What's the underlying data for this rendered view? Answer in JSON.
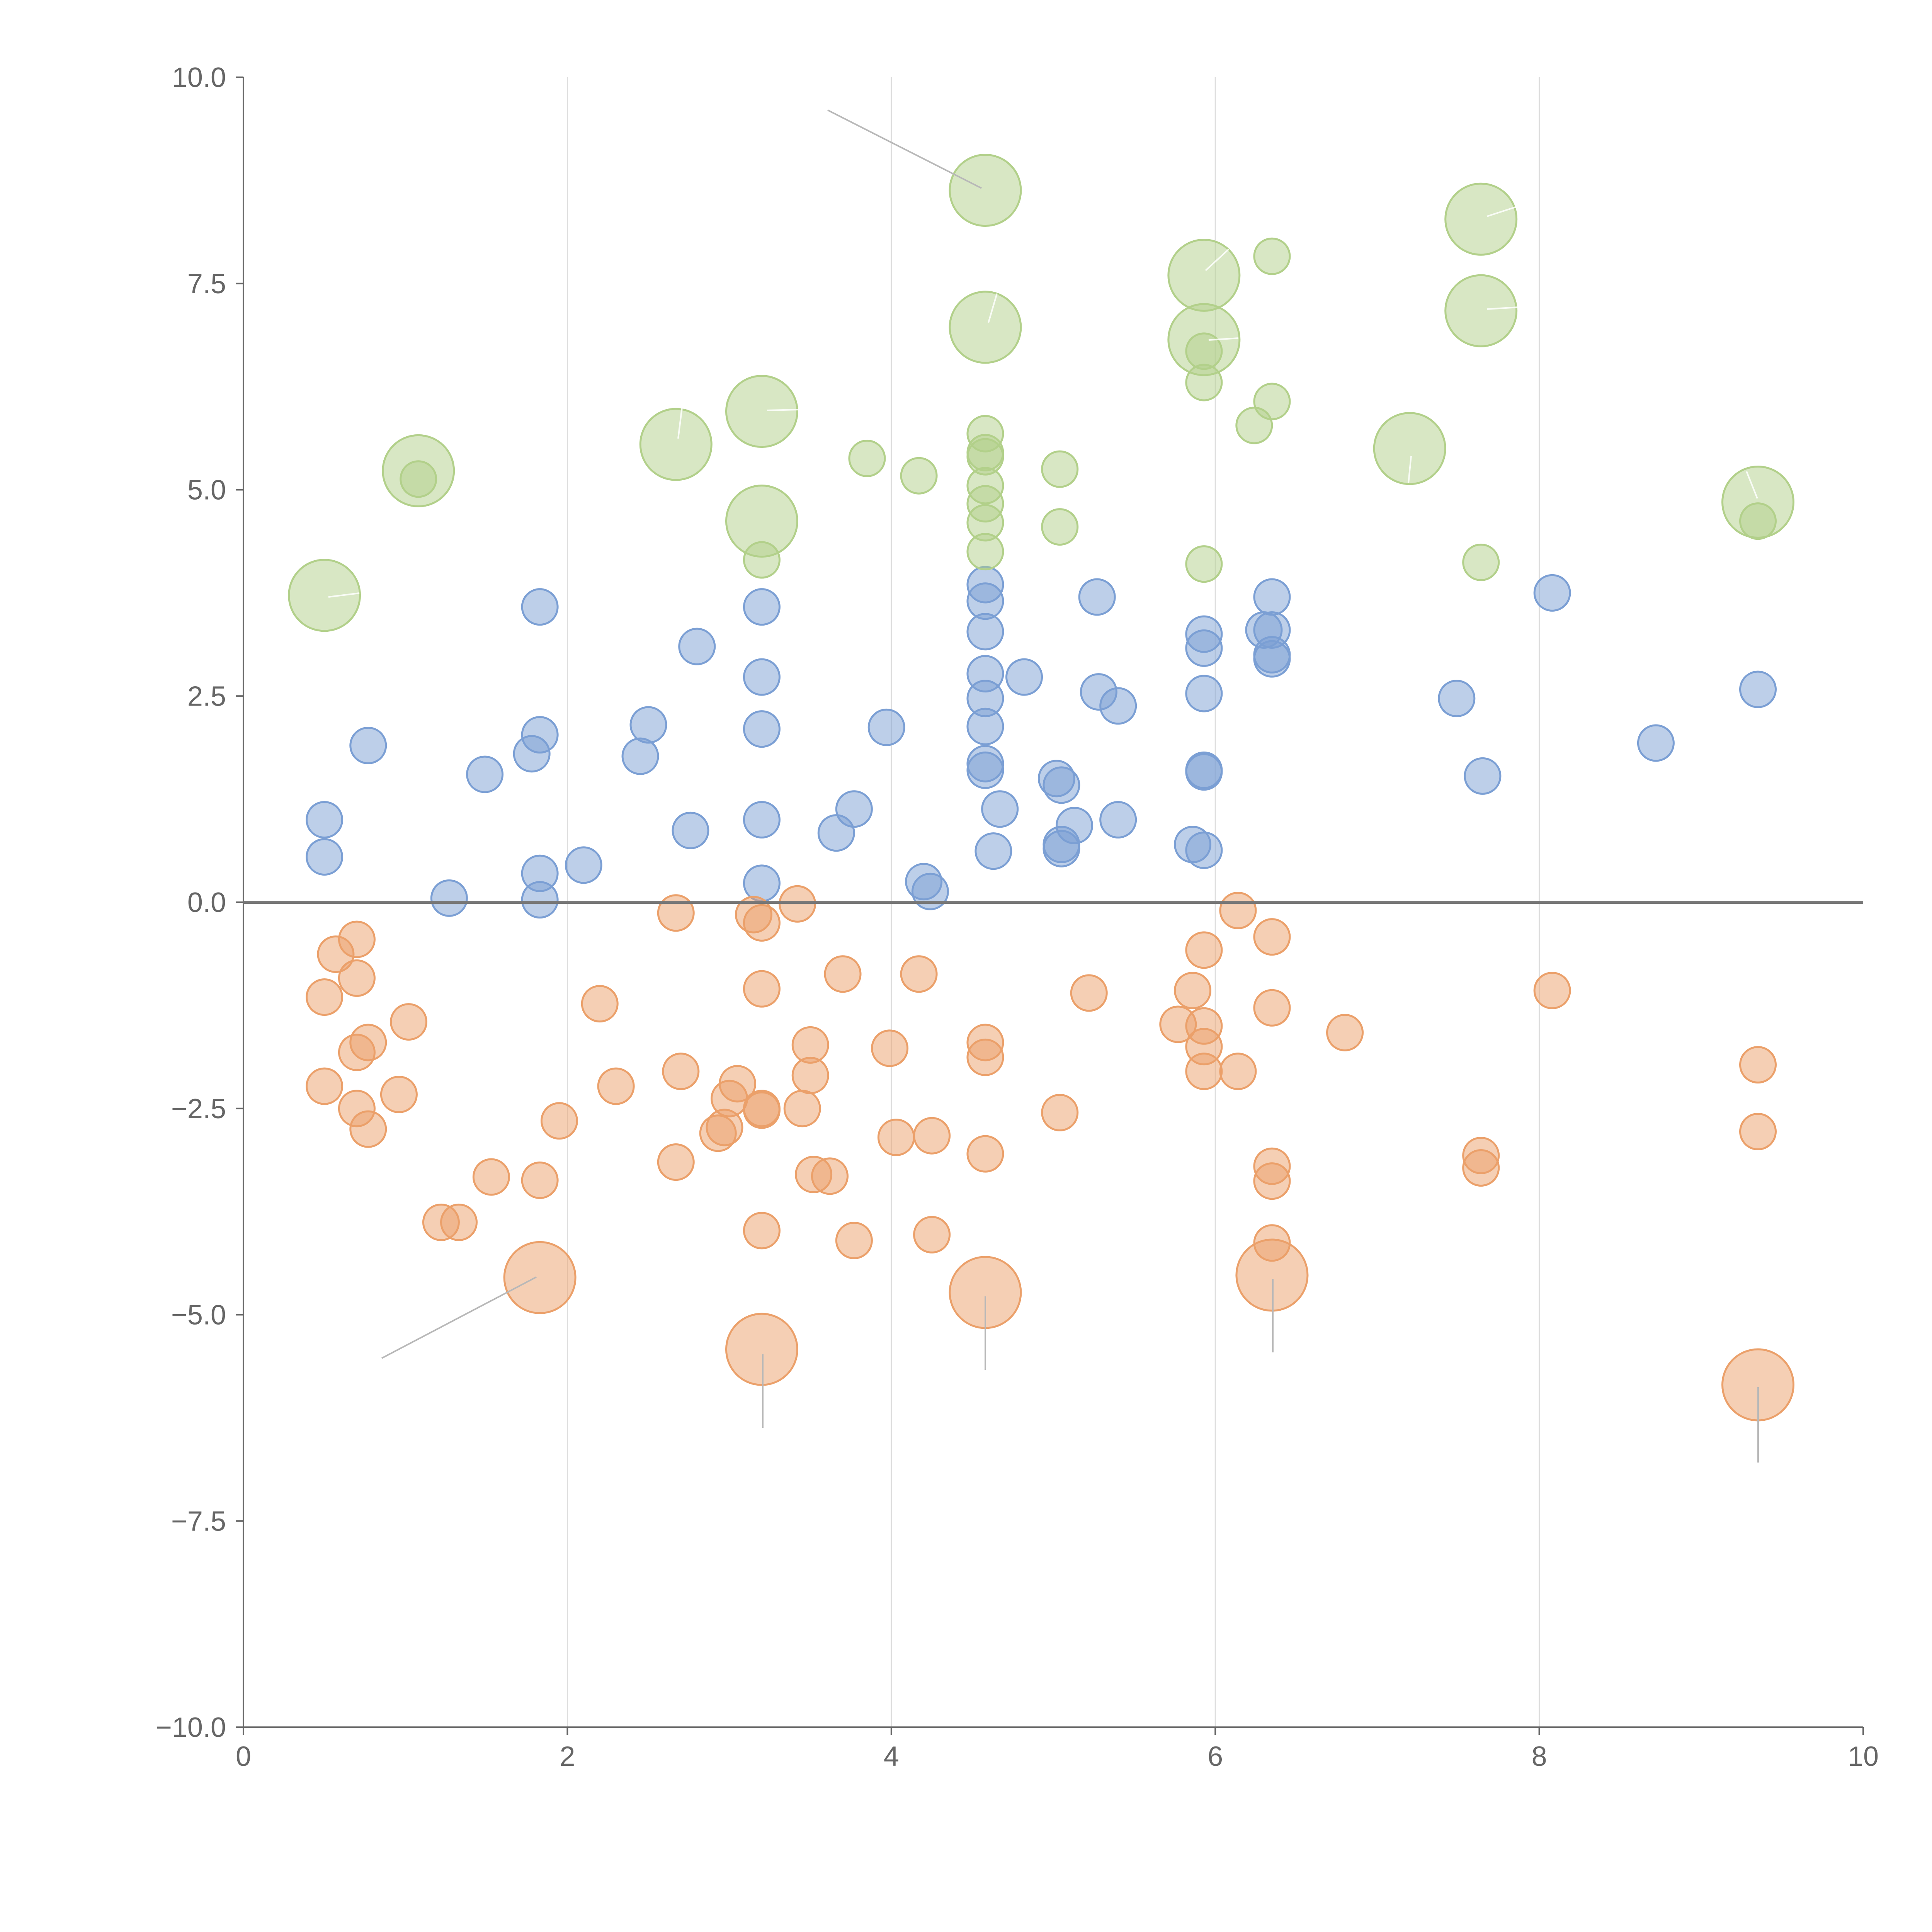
{
  "chart_data": {
    "type": "scatter",
    "title": "",
    "xlabel": "",
    "ylabel": "",
    "xlim": [
      0,
      10
    ],
    "ylim": [
      -10,
      10
    ],
    "grid": "vertical",
    "x_ticks": [
      "0",
      "2",
      "4",
      "6",
      "8",
      "10"
    ],
    "y_ticks": [
      "10.0",
      "7.5",
      "5.0",
      "2.5",
      "0.0",
      "−2.5",
      "−5.0",
      "−7.5",
      "−10.0"
    ],
    "colors": {
      "blue": "#7b9fd4",
      "orange": "#eba06a",
      "green": "#b2d08a",
      "axis": "#666666",
      "grid": "#dddddd"
    },
    "series": [
      {
        "name": "blue",
        "color": "#7b9fd4",
        "points": [
          [
            0.5,
            1.0
          ],
          [
            0.5,
            0.55
          ],
          [
            0.77,
            1.9
          ],
          [
            1.27,
            0.05
          ],
          [
            1.49,
            1.55
          ],
          [
            1.78,
            1.8
          ],
          [
            1.83,
            2.03
          ],
          [
            1.83,
            3.58
          ],
          [
            1.83,
            0.35
          ],
          [
            1.83,
            0.03
          ],
          [
            2.1,
            0.45
          ],
          [
            2.45,
            1.77
          ],
          [
            2.5,
            2.15
          ],
          [
            2.76,
            0.87
          ],
          [
            2.8,
            3.1
          ],
          [
            3.2,
            3.58
          ],
          [
            3.2,
            2.73
          ],
          [
            3.2,
            2.1
          ],
          [
            3.2,
            1.0
          ],
          [
            3.2,
            0.23
          ],
          [
            3.66,
            0.84
          ],
          [
            3.77,
            1.13
          ],
          [
            3.97,
            2.12
          ],
          [
            4.2,
            0.25
          ],
          [
            4.24,
            0.13
          ],
          [
            4.58,
            3.85
          ],
          [
            4.58,
            3.65
          ],
          [
            4.58,
            3.28
          ],
          [
            4.58,
            2.77
          ],
          [
            4.58,
            2.47
          ],
          [
            4.58,
            2.13
          ],
          [
            4.58,
            1.68
          ],
          [
            4.58,
            1.6
          ],
          [
            4.63,
            0.62
          ],
          [
            4.67,
            1.13
          ],
          [
            4.82,
            2.73
          ],
          [
            5.02,
            1.5
          ],
          [
            5.05,
            1.42
          ],
          [
            5.05,
            0.7
          ],
          [
            5.05,
            0.65
          ],
          [
            5.13,
            0.93
          ],
          [
            5.27,
            3.7
          ],
          [
            5.28,
            2.55
          ],
          [
            5.4,
            2.38
          ],
          [
            5.4,
            1.0
          ],
          [
            5.86,
            0.7
          ],
          [
            5.93,
            3.25
          ],
          [
            5.93,
            3.08
          ],
          [
            5.93,
            2.53
          ],
          [
            5.93,
            1.6
          ],
          [
            5.93,
            1.58
          ],
          [
            5.93,
            0.63
          ],
          [
            6.3,
            3.3
          ],
          [
            6.35,
            3.7
          ],
          [
            6.35,
            3.3
          ],
          [
            6.35,
            3.0
          ],
          [
            6.35,
            2.95
          ],
          [
            7.49,
            2.47
          ],
          [
            7.65,
            1.53
          ],
          [
            8.08,
            3.75
          ],
          [
            8.72,
            1.93
          ],
          [
            9.35,
            2.58
          ]
        ]
      },
      {
        "name": "orange",
        "color": "#eba06a",
        "points": [
          [
            0.5,
            -1.15
          ],
          [
            0.5,
            -2.23
          ],
          [
            0.57,
            -0.63
          ],
          [
            0.7,
            -0.92
          ],
          [
            0.7,
            -0.45
          ],
          [
            0.7,
            -1.82
          ],
          [
            0.7,
            -2.5
          ],
          [
            0.77,
            -1.7
          ],
          [
            0.77,
            -2.75
          ],
          [
            0.96,
            -2.33
          ],
          [
            1.02,
            -1.45
          ],
          [
            1.22,
            -3.88
          ],
          [
            1.33,
            -3.88
          ],
          [
            1.53,
            -3.33
          ],
          [
            1.83,
            -3.37
          ],
          [
            1.95,
            -2.65
          ],
          [
            2.2,
            -1.23
          ],
          [
            2.3,
            -2.23
          ],
          [
            2.67,
            -0.13
          ],
          [
            2.67,
            -3.15
          ],
          [
            2.7,
            -2.05
          ],
          [
            2.93,
            -2.8
          ],
          [
            2.97,
            -2.73
          ],
          [
            3.0,
            -2.38
          ],
          [
            3.05,
            -2.2
          ],
          [
            3.15,
            -0.15
          ],
          [
            3.2,
            -0.25
          ],
          [
            3.2,
            -1.05
          ],
          [
            3.2,
            -2.5
          ],
          [
            3.2,
            -2.52
          ],
          [
            3.2,
            -3.98
          ],
          [
            3.42,
            -0.02
          ],
          [
            3.45,
            -2.5
          ],
          [
            3.5,
            -1.73
          ],
          [
            3.5,
            -2.1
          ],
          [
            3.52,
            -3.3
          ],
          [
            3.62,
            -3.32
          ],
          [
            3.7,
            -0.87
          ],
          [
            3.77,
            -4.1
          ],
          [
            3.99,
            -1.77
          ],
          [
            4.03,
            -2.85
          ],
          [
            4.17,
            -0.87
          ],
          [
            4.25,
            -2.83
          ],
          [
            4.25,
            -4.03
          ],
          [
            4.58,
            -1.7
          ],
          [
            4.58,
            -1.88
          ],
          [
            4.58,
            -3.05
          ],
          [
            5.04,
            -2.55
          ],
          [
            5.22,
            -1.1
          ],
          [
            5.77,
            -1.48
          ],
          [
            5.86,
            -1.07
          ],
          [
            5.93,
            -0.58
          ],
          [
            5.93,
            -1.5
          ],
          [
            5.93,
            -1.75
          ],
          [
            5.93,
            -2.05
          ],
          [
            6.14,
            -0.1
          ],
          [
            6.14,
            -2.05
          ],
          [
            6.35,
            -0.42
          ],
          [
            6.35,
            -1.28
          ],
          [
            6.35,
            -3.2
          ],
          [
            6.35,
            -3.38
          ],
          [
            6.35,
            -4.13
          ],
          [
            6.8,
            -1.58
          ],
          [
            7.64,
            -3.07
          ],
          [
            7.64,
            -3.22
          ],
          [
            8.08,
            -1.07
          ],
          [
            9.35,
            -1.97
          ],
          [
            9.35,
            -2.78
          ]
        ],
        "large_points": [
          [
            1.83,
            -4.55
          ],
          [
            3.2,
            -5.42
          ],
          [
            4.58,
            -4.73
          ],
          [
            6.35,
            -4.52
          ],
          [
            9.35,
            -5.85
          ]
        ]
      },
      {
        "name": "green",
        "color": "#b2d08a",
        "points": [
          [
            1.08,
            5.13
          ],
          [
            3.2,
            4.15
          ],
          [
            3.85,
            5.38
          ],
          [
            4.17,
            5.17
          ],
          [
            4.58,
            5.68
          ],
          [
            4.58,
            5.45
          ],
          [
            4.58,
            5.4
          ],
          [
            4.58,
            5.05
          ],
          [
            4.58,
            4.83
          ],
          [
            4.58,
            4.6
          ],
          [
            4.58,
            4.25
          ],
          [
            5.04,
            5.25
          ],
          [
            5.04,
            4.55
          ],
          [
            5.93,
            6.68
          ],
          [
            5.93,
            6.3
          ],
          [
            5.93,
            4.1
          ],
          [
            6.24,
            5.78
          ],
          [
            6.35,
            7.83
          ],
          [
            6.35,
            6.07
          ],
          [
            7.64,
            4.12
          ],
          [
            9.35,
            4.62
          ]
        ],
        "large_points": [
          [
            0.5,
            3.72
          ],
          [
            1.08,
            5.23
          ],
          [
            2.67,
            5.55
          ],
          [
            3.2,
            5.95
          ],
          [
            3.2,
            4.62
          ],
          [
            4.58,
            8.63
          ],
          [
            4.58,
            6.97
          ],
          [
            5.93,
            7.6
          ],
          [
            5.93,
            6.82
          ],
          [
            7.2,
            5.5
          ],
          [
            7.64,
            8.28
          ],
          [
            7.64,
            7.17
          ],
          [
            9.35,
            4.85
          ]
        ]
      }
    ]
  }
}
